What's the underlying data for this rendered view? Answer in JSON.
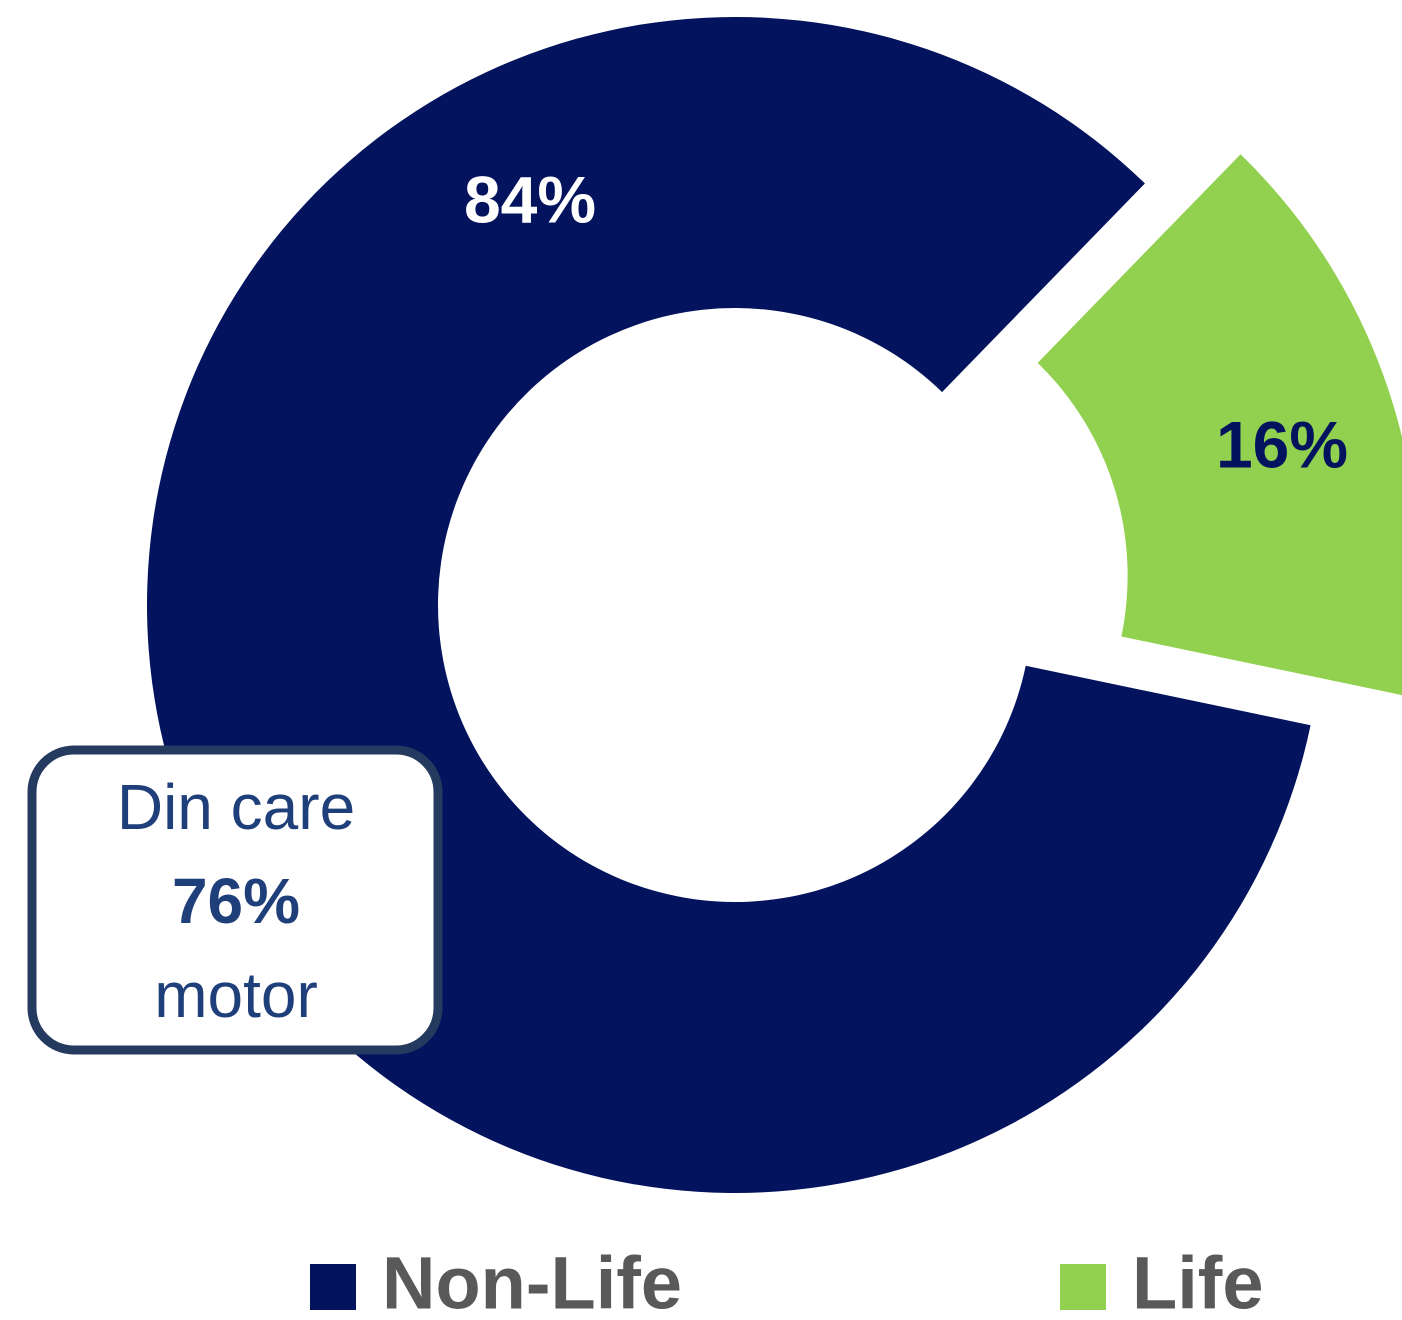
{
  "chart_data": {
    "type": "donut",
    "categories": [
      "Non-Life",
      "Life"
    ],
    "values": [
      84,
      16
    ],
    "value_labels": [
      "84%",
      "16%"
    ],
    "colors": [
      "#04135e",
      "#92d050"
    ],
    "label_colors": [
      "#ffffff",
      "#04135e"
    ],
    "exploded": [
      false,
      true
    ],
    "annotation": [
      "Din care",
      "76%",
      "motor"
    ],
    "legend": "bottom"
  }
}
